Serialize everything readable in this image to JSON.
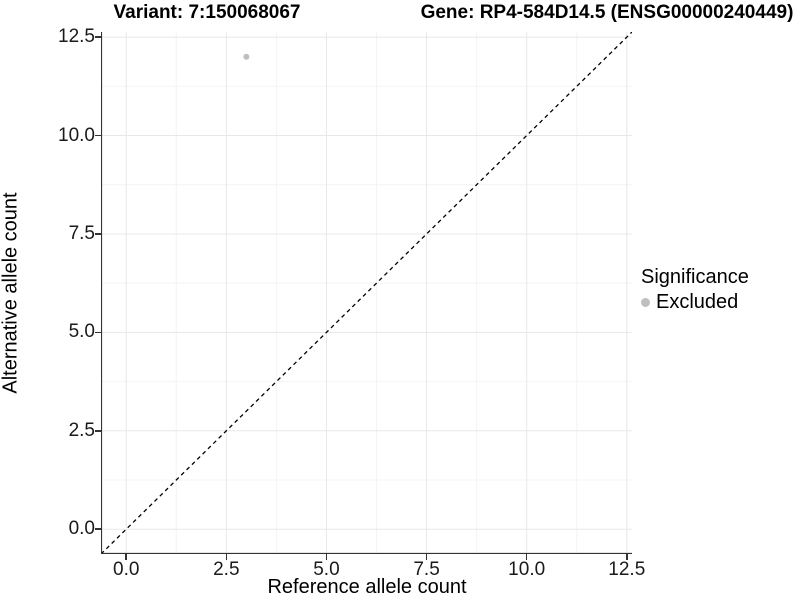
{
  "titles": {
    "variant": "Variant: 7:150068067",
    "gene": "Gene: RP4-584D14.5 (ENSG00000240449)"
  },
  "chart_data": {
    "type": "scatter",
    "title_left": "Variant: 7:150068067",
    "title_right": "Gene: RP4-584D14.5 (ENSG00000240449)",
    "xlabel": "Reference allele count",
    "ylabel": "Alternative allele count",
    "xlim": [
      -0.63,
      12.63
    ],
    "ylim": [
      -0.63,
      12.63
    ],
    "xticks": [
      0.0,
      2.5,
      5.0,
      7.5,
      10.0,
      12.5
    ],
    "yticks": [
      0.0,
      2.5,
      5.0,
      7.5,
      10.0,
      12.5
    ],
    "xtick_labels": [
      "0.0",
      "2.5",
      "5.0",
      "7.5",
      "10.0",
      "12.5"
    ],
    "ytick_labels": [
      "0.0",
      "2.5",
      "5.0",
      "7.5",
      "10.0",
      "12.5"
    ],
    "minor_ticks": [
      1.25,
      3.75,
      6.25,
      8.75,
      11.25
    ],
    "grid": true,
    "series": [
      {
        "name": "Excluded",
        "color": "#bfbfbf",
        "point_radius": 3,
        "points": [
          [
            3,
            12
          ]
        ]
      }
    ],
    "reference_line": {
      "slope": 1,
      "intercept": 0,
      "style": "dashed",
      "color": "#000000"
    },
    "legend": {
      "position": "right",
      "title": "Significance",
      "items": [
        {
          "label": "Excluded",
          "color": "#bfbfbf"
        }
      ]
    }
  },
  "colors": {
    "axis_line": "#333333",
    "grid_major": "#e8e8e8",
    "grid_minor": "#f4f4f4",
    "background": "#ffffff"
  }
}
